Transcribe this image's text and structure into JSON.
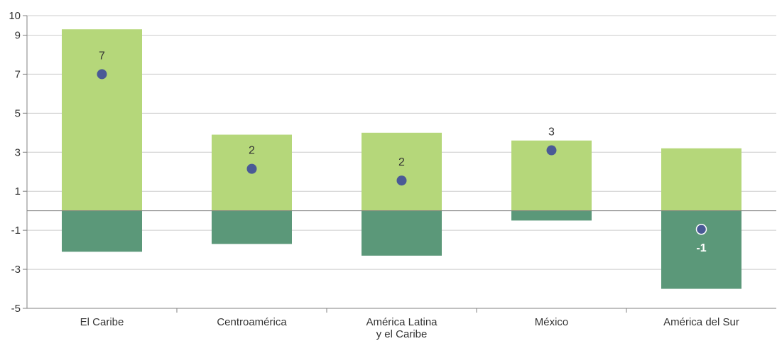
{
  "chart_data": {
    "type": "bar",
    "title": "",
    "xlabel": "",
    "ylabel": "",
    "ylim": [
      -5,
      10
    ],
    "yticks": [
      10,
      9,
      7,
      5,
      3,
      1,
      -1,
      -3,
      -5
    ],
    "grid": true,
    "categories": [
      [
        "El Caribe"
      ],
      [
        "Centroamérica"
      ],
      [
        "América Latina",
        "y el Caribe"
      ],
      [
        "México"
      ],
      [
        "América del Sur"
      ]
    ],
    "series": [
      {
        "kind": "bar",
        "values": [
          9.3,
          3.9,
          4.0,
          3.6,
          3.2
        ]
      },
      {
        "kind": "bar",
        "values": [
          -2.1,
          -1.7,
          -2.3,
          -0.5,
          -4.0
        ]
      },
      {
        "kind": "point",
        "values": [
          7.0,
          2.15,
          1.55,
          3.1,
          -0.95
        ],
        "labels": [
          "7",
          "2",
          "2",
          "3",
          "-1"
        ]
      }
    ],
    "colors": {
      "positive_bar": "#b5d77a",
      "negative_bar": "#5b9879",
      "point": "#4a5a96",
      "point_stroke_inside": "#ffffff",
      "grid": "#cccccc",
      "axis": "#808080"
    }
  }
}
